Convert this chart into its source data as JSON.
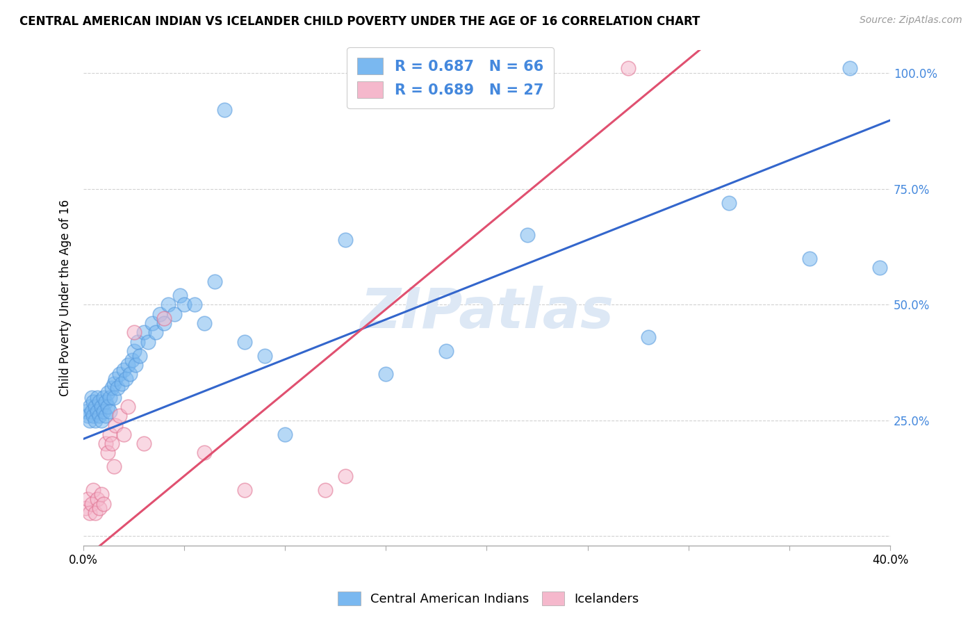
{
  "title": "CENTRAL AMERICAN INDIAN VS ICELANDER CHILD POVERTY UNDER THE AGE OF 16 CORRELATION CHART",
  "source": "Source: ZipAtlas.com",
  "ylabel": "Child Poverty Under the Age of 16",
  "xlim": [
    0.0,
    0.4
  ],
  "ylim": [
    -0.02,
    1.05
  ],
  "blue_color": "#7ab8f0",
  "blue_edge_color": "#5599dd",
  "pink_color": "#f5b8cc",
  "pink_edge_color": "#e07090",
  "blue_line_color": "#3366cc",
  "pink_line_color": "#e05070",
  "legend_text_color": "#4488dd",
  "watermark_color": "#dde8f5",
  "R_blue": 0.687,
  "N_blue": 66,
  "R_pink": 0.689,
  "N_pink": 27,
  "blue_slope": 1.72,
  "blue_intercept": 0.21,
  "pink_slope": 3.6,
  "pink_intercept": -0.05,
  "blue_x": [
    0.001,
    0.002,
    0.003,
    0.003,
    0.004,
    0.004,
    0.005,
    0.005,
    0.006,
    0.006,
    0.007,
    0.007,
    0.008,
    0.008,
    0.009,
    0.009,
    0.01,
    0.01,
    0.011,
    0.011,
    0.012,
    0.012,
    0.013,
    0.013,
    0.014,
    0.015,
    0.015,
    0.016,
    0.017,
    0.018,
    0.019,
    0.02,
    0.021,
    0.022,
    0.023,
    0.024,
    0.025,
    0.026,
    0.027,
    0.028,
    0.03,
    0.032,
    0.034,
    0.036,
    0.038,
    0.04,
    0.042,
    0.045,
    0.048,
    0.05,
    0.055,
    0.06,
    0.065,
    0.07,
    0.08,
    0.09,
    0.1,
    0.13,
    0.15,
    0.18,
    0.22,
    0.28,
    0.32,
    0.36,
    0.38,
    0.395
  ],
  "blue_y": [
    0.27,
    0.26,
    0.28,
    0.25,
    0.3,
    0.27,
    0.29,
    0.26,
    0.28,
    0.25,
    0.3,
    0.27,
    0.29,
    0.26,
    0.28,
    0.25,
    0.3,
    0.27,
    0.29,
    0.26,
    0.31,
    0.28,
    0.3,
    0.27,
    0.32,
    0.33,
    0.3,
    0.34,
    0.32,
    0.35,
    0.33,
    0.36,
    0.34,
    0.37,
    0.35,
    0.38,
    0.4,
    0.37,
    0.42,
    0.39,
    0.44,
    0.42,
    0.46,
    0.44,
    0.48,
    0.46,
    0.5,
    0.48,
    0.52,
    0.5,
    0.5,
    0.46,
    0.55,
    0.92,
    0.42,
    0.39,
    0.22,
    0.64,
    0.35,
    0.4,
    0.65,
    0.43,
    0.72,
    0.6,
    1.01,
    0.58
  ],
  "pink_x": [
    0.001,
    0.002,
    0.003,
    0.004,
    0.005,
    0.006,
    0.007,
    0.008,
    0.009,
    0.01,
    0.011,
    0.012,
    0.013,
    0.014,
    0.015,
    0.016,
    0.018,
    0.02,
    0.022,
    0.025,
    0.03,
    0.04,
    0.06,
    0.08,
    0.12,
    0.13,
    0.27
  ],
  "pink_y": [
    0.06,
    0.08,
    0.05,
    0.07,
    0.1,
    0.05,
    0.08,
    0.06,
    0.09,
    0.07,
    0.2,
    0.18,
    0.22,
    0.2,
    0.15,
    0.24,
    0.26,
    0.22,
    0.28,
    0.44,
    0.2,
    0.47,
    0.18,
    0.1,
    0.1,
    0.13,
    1.01
  ]
}
